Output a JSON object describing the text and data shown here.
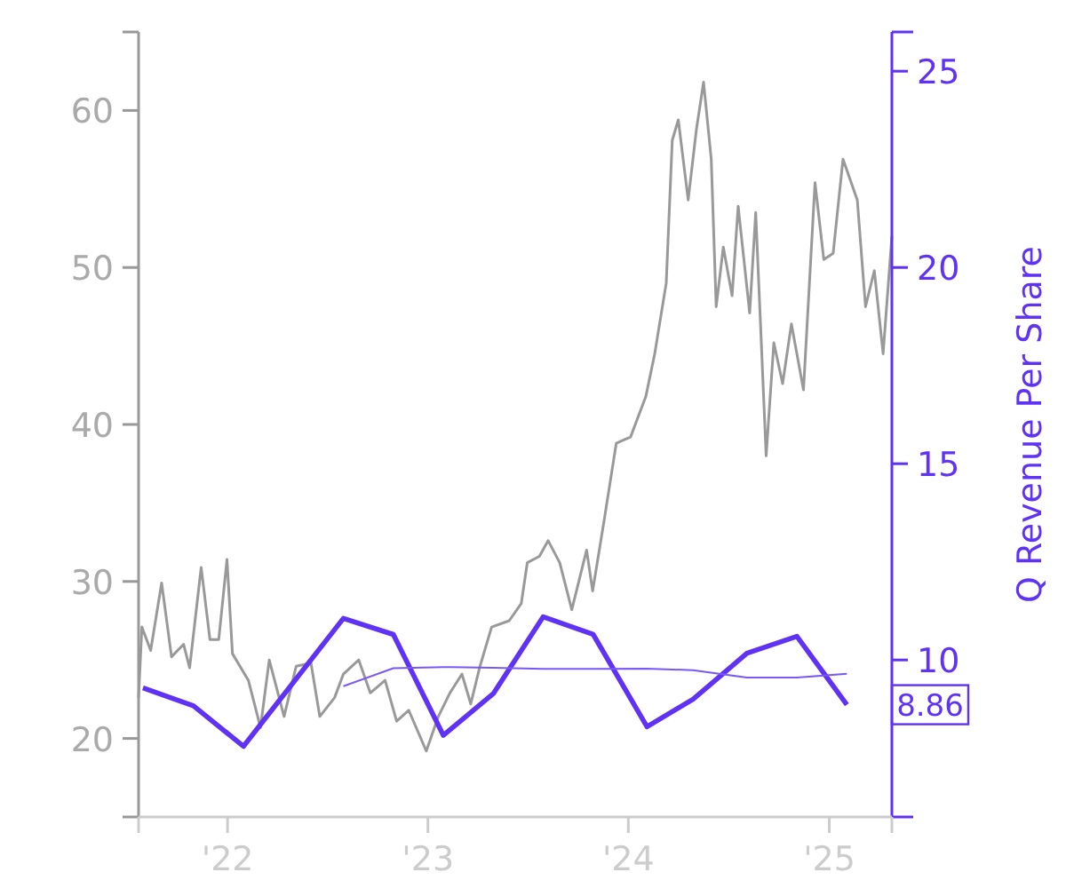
{
  "chart_data": {
    "type": "line",
    "y2label": "Q Revenue Per Share",
    "xlim": [
      "2021-07-23",
      "2025-04-25"
    ],
    "xticks": [
      {
        "value": "2022-01-01",
        "label": "'22"
      },
      {
        "value": "2023-01-01",
        "label": "'23"
      },
      {
        "value": "2024-01-01",
        "label": "'24"
      },
      {
        "value": "2025-01-01",
        "label": "'25"
      }
    ],
    "ylim": [
      15,
      65
    ],
    "yticks": [
      20,
      30,
      40,
      50,
      60
    ],
    "y2lim": [
      6,
      26
    ],
    "y2ticks": [
      10,
      15,
      20,
      25
    ],
    "series": [
      {
        "color": "#999999",
        "x": [
          "2021-07-23",
          "2021-07-29",
          "2021-08-14",
          "2021-09-03",
          "2021-09-21",
          "2021-10-13",
          "2021-10-24",
          "2021-11-14",
          "2021-11-30",
          "2021-12-16",
          "2021-12-31",
          "2022-01-10",
          "2022-02-08",
          "2022-03-02",
          "2022-03-18",
          "2022-04-14",
          "2022-05-06",
          "2022-06-02",
          "2022-06-18",
          "2022-07-15",
          "2022-07-31",
          "2022-08-28",
          "2022-09-18",
          "2022-10-15",
          "2022-11-05",
          "2022-11-27",
          "2022-12-29",
          "2023-01-20",
          "2023-02-10",
          "2023-03-04",
          "2023-03-20",
          "2023-04-05",
          "2023-04-27",
          "2023-05-29",
          "2023-06-20",
          "2023-07-01",
          "2023-07-23",
          "2023-08-08",
          "2023-08-29",
          "2023-09-20",
          "2023-10-17",
          "2023-10-28",
          "2023-11-18",
          "2023-12-10",
          "2024-01-05",
          "2024-02-02",
          "2024-02-18",
          "2024-03-10",
          "2024-03-21",
          "2024-04-01",
          "2024-04-19",
          "2024-05-04",
          "2024-05-17",
          "2024-05-31",
          "2024-06-09",
          "2024-06-22",
          "2024-07-08",
          "2024-07-19",
          "2024-08-09",
          "2024-08-20",
          "2024-09-08",
          "2024-09-22",
          "2024-10-08",
          "2024-10-24",
          "2024-11-15",
          "2024-12-06",
          "2024-12-22",
          "2025-01-08",
          "2025-01-26",
          "2025-02-21",
          "2025-03-08",
          "2025-03-24",
          "2025-04-09",
          "2025-04-25"
        ],
        "values": [
          22.6,
          27.1,
          25.6,
          29.9,
          25.2,
          26.0,
          24.5,
          30.9,
          26.3,
          26.3,
          31.4,
          25.4,
          23.7,
          20.7,
          25.0,
          21.4,
          24.6,
          24.8,
          21.4,
          22.6,
          24.1,
          25.0,
          22.9,
          23.7,
          21.1,
          21.8,
          19.2,
          21.4,
          22.9,
          24.1,
          22.2,
          24.5,
          27.1,
          27.5,
          28.6,
          31.2,
          31.6,
          32.6,
          31.2,
          28.2,
          32.0,
          29.4,
          33.9,
          38.8,
          39.2,
          41.8,
          44.5,
          49.0,
          58.1,
          59.4,
          54.3,
          58.8,
          61.8,
          56.9,
          47.5,
          51.3,
          48.2,
          53.9,
          47.1,
          53.5,
          38.0,
          45.2,
          42.6,
          46.4,
          42.2,
          55.4,
          50.5,
          50.9,
          56.9,
          54.3,
          47.5,
          49.8,
          44.5,
          52.0
        ]
      },
      {
        "color": "#5f32f5",
        "axis": "y2",
        "x": [
          "2021-07-31",
          "2021-10-31",
          "2022-01-30",
          "2022-07-31",
          "2022-10-30",
          "2023-01-29",
          "2023-04-30",
          "2023-07-30",
          "2023-10-29",
          "2024-02-04",
          "2024-04-28",
          "2024-08-04",
          "2024-11-03",
          "2025-02-02"
        ],
        "values": [
          9.29,
          8.83,
          7.8,
          11.06,
          10.65,
          8.08,
          9.14,
          11.1,
          10.65,
          8.3,
          9.0,
          10.17,
          10.6,
          8.86
        ],
        "value_labels": [
          null,
          null,
          null,
          null,
          null,
          null,
          null,
          null,
          null,
          null,
          null,
          null,
          null,
          "8.86"
        ]
      },
      {
        "color": "#7a57f7",
        "axis": "y2",
        "x": [
          "2022-07-31",
          "2022-10-30",
          "2023-01-29",
          "2023-04-30",
          "2023-07-30",
          "2023-10-29",
          "2024-02-04",
          "2024-04-28",
          "2024-08-04",
          "2024-11-03",
          "2025-02-02"
        ],
        "values": [
          9.33,
          9.79,
          9.82,
          9.8,
          9.77,
          9.77,
          9.78,
          9.74,
          9.55,
          9.55,
          9.65
        ]
      }
    ]
  }
}
